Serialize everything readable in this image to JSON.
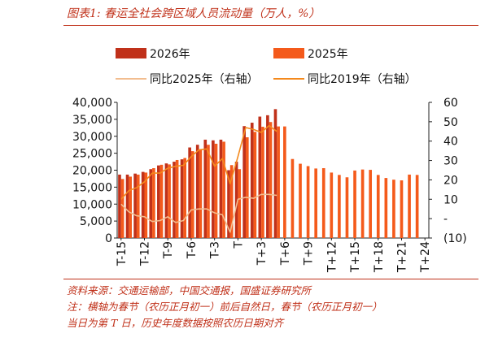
{
  "header": {
    "title": "图表1: 春运全社会跨区域人员流动量（万人，%）"
  },
  "footer": {
    "source": "资料来源：交通运输部，中国交通报，国盛证券研究所",
    "note_line1": "注：横轴为春节（农历正月初一）前后自然日，春节（农历正月初一）",
    "note_line2": "当日为第 T 日，历史年度数据按照农历日期对齐"
  },
  "colors": {
    "bar2026": "#c0311a",
    "bar2025": "#f45a1b",
    "line2025": "#f2bd8f",
    "line2019": "#f4891c",
    "accent": "#c0311a"
  },
  "chart_data": {
    "type": "bar",
    "categories": [
      "T-15",
      "T-14",
      "T-13",
      "T-12",
      "T-11",
      "T-10",
      "T-9",
      "T-8",
      "T-7",
      "T-6",
      "T-5",
      "T-4",
      "T-3",
      "T-2",
      "T-1",
      "T",
      "T+1",
      "T+2",
      "T+3",
      "T+4",
      "T+5",
      "T+6",
      "T+7",
      "T+8",
      "T+9",
      "T+10",
      "T+11",
      "T+12",
      "T+13",
      "T+14",
      "T+15",
      "T+16",
      "T+17",
      "T+18",
      "T+19",
      "T+20",
      "T+21",
      "T+22",
      "T+23",
      "T+24"
    ],
    "tick_labels": [
      "T-15",
      "T-12",
      "T-9",
      "T-6",
      "T-3",
      "T",
      "T+3",
      "T+6",
      "T+9",
      "T+12",
      "T+15",
      "T+18",
      "T+21",
      "T+24"
    ],
    "left_axis": {
      "ylim": [
        0,
        40000
      ],
      "ticks": [
        "0",
        "5,000",
        "10,000",
        "15,000",
        "20,000",
        "25,000",
        "30,000",
        "35,000",
        "40,000"
      ]
    },
    "right_axis": {
      "ylim": [
        -10,
        60
      ],
      "ticks": [
        "(10)",
        "-",
        "10",
        "20",
        "30",
        "40",
        "50",
        "60"
      ]
    },
    "legend_placement": "top",
    "series": [
      {
        "name": "2026年",
        "kind": "bar",
        "axis": "left",
        "values": [
          18700,
          18700,
          19000,
          19500,
          20300,
          21400,
          22000,
          22500,
          23200,
          26700,
          27500,
          29000,
          28800,
          29000,
          20000,
          22500,
          33000,
          34000,
          35800,
          36200,
          38000,
          null,
          null,
          null,
          null,
          null,
          null,
          null,
          null,
          null,
          null,
          null,
          null,
          null,
          null,
          null,
          null,
          null,
          null,
          null
        ]
      },
      {
        "name": "2025年",
        "kind": "bar",
        "axis": "left",
        "values": [
          17400,
          18100,
          18700,
          19300,
          20600,
          21600,
          21700,
          23000,
          23600,
          25600,
          26100,
          27500,
          27800,
          28400,
          21500,
          20300,
          29700,
          31300,
          32800,
          34200,
          32900,
          32900,
          23300,
          21900,
          21200,
          20500,
          20600,
          19300,
          18600,
          17900,
          19900,
          20200,
          20100,
          18600,
          17700,
          17200,
          17000,
          18700,
          18600,
          null
        ]
      },
      {
        "name": "同比2025年（右轴）",
        "kind": "line",
        "axis": "right",
        "values": [
          7.5,
          3.5,
          1.5,
          1.0,
          -1.5,
          -1.0,
          1.0,
          -2.0,
          -1.0,
          4.5,
          5.0,
          5.0,
          3.0,
          2.0,
          -7.0,
          10.0,
          11.0,
          10.5,
          12.5,
          12.5,
          12.0,
          null,
          null,
          null,
          null,
          null,
          null,
          null,
          null,
          null,
          null,
          null,
          null,
          null,
          null,
          null,
          null,
          null,
          null,
          null
        ]
      },
      {
        "name": "同比2019年（右轴）",
        "kind": "line",
        "axis": "right",
        "values": [
          10.0,
          14.5,
          16.0,
          19.0,
          23.5,
          23.5,
          26.0,
          27.0,
          27.5,
          32.0,
          35.5,
          36.0,
          27.0,
          31.0,
          18.0,
          32.0,
          47.0,
          46.0,
          44.5,
          48.0,
          45.0,
          null,
          null,
          null,
          null,
          null,
          null,
          null,
          null,
          null,
          null,
          null,
          null,
          null,
          null,
          null,
          null,
          null,
          null,
          null
        ]
      }
    ]
  }
}
